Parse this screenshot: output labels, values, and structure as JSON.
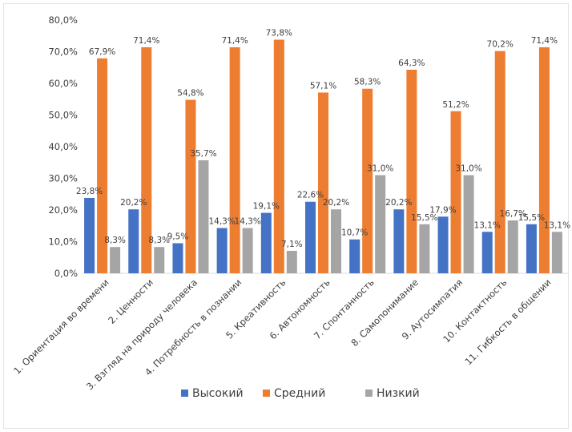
{
  "chart_data": {
    "type": "bar",
    "title": "",
    "xlabel": "",
    "ylabel": "",
    "ylim": [
      0,
      80
    ],
    "yticks": [
      "0,0%",
      "10,0%",
      "20,0%",
      "30,0%",
      "40,0%",
      "50,0%",
      "60,0%",
      "70,0%",
      "80,0%"
    ],
    "grid": false,
    "legend_position": "bottom",
    "categories": [
      "1. Ориентация во времени",
      "2. Ценности",
      "3. Взгляд на природу человека",
      "4. Потребность в познании",
      "5. Креативность",
      "6. Автономность",
      "7. Спонтанность",
      "8. Самопонимание",
      "9. Аутосимпатия",
      "10. Контактность",
      "11. Гибкость в общении"
    ],
    "series": [
      {
        "name": "Высокий",
        "color": "#4472C4",
        "values": [
          23.8,
          20.2,
          9.5,
          14.3,
          19.1,
          22.6,
          10.7,
          20.2,
          17.9,
          13.1,
          15.5
        ],
        "labels": [
          "23,8%",
          "20,2%",
          "9,5%",
          "14,3%",
          "19,1%",
          "22,6%",
          "10,7%",
          "20,2%",
          "17,9%",
          "13,1%",
          "15,5%"
        ]
      },
      {
        "name": "Средний",
        "color": "#ED7D31",
        "values": [
          67.9,
          71.4,
          54.8,
          71.4,
          73.8,
          57.1,
          58.3,
          64.3,
          51.2,
          70.2,
          71.4
        ],
        "labels": [
          "67,9%",
          "71,4%",
          "54,8%",
          "71,4%",
          "73,8%",
          "57,1%",
          "58,3%",
          "64,3%",
          "51,2%",
          "70,2%",
          "71,4%"
        ]
      },
      {
        "name": "Низкий",
        "color": "#A5A5A5",
        "values": [
          8.3,
          8.3,
          35.7,
          14.3,
          7.1,
          20.2,
          31.0,
          15.5,
          31.0,
          16.7,
          13.1
        ],
        "labels": [
          "8,3%",
          "8,3%",
          "35,7%",
          "14,3%",
          "7,1%",
          "20,2%",
          "31,0%",
          "15,5%",
          "31,0%",
          "16,7%",
          "13,1%"
        ]
      }
    ]
  }
}
